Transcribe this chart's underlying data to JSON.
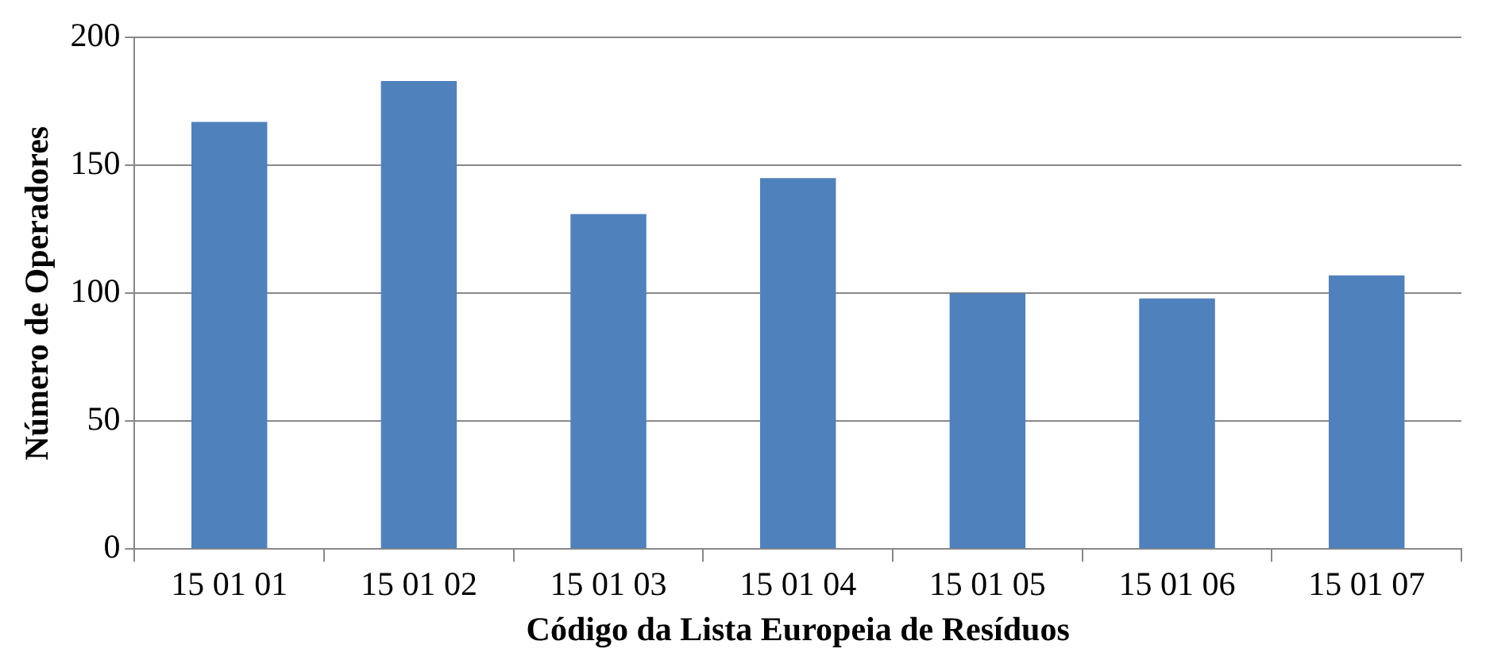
{
  "chart_data": {
    "type": "bar",
    "xlabel": "Código da Lista Europeia de Resíduos",
    "ylabel": "Número de Operadores",
    "categories": [
      "15 01 01",
      "15 01 02",
      "15 01 03",
      "15 01 04",
      "15 01 05",
      "15 01 06",
      "15 01 07"
    ],
    "values": [
      167,
      183,
      131,
      145,
      100,
      98,
      107
    ],
    "color": "#4f81bd",
    "ylim": [
      0,
      200
    ],
    "yticks": [
      0,
      50,
      100,
      150,
      200
    ],
    "grid": "y"
  }
}
